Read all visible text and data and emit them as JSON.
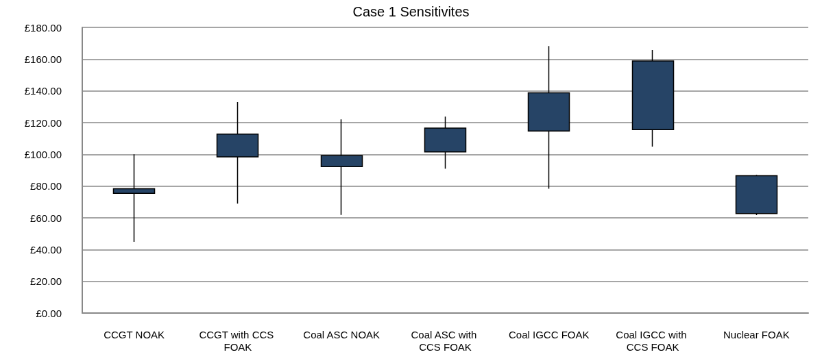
{
  "chart_data": {
    "type": "candlestick",
    "title": "Case 1 Sensitivites",
    "categories": [
      "CCGT NOAK",
      "CCGT with CCS FOAK",
      "Coal ASC NOAK",
      "Coal ASC with CCS FOAK",
      "Coal IGCC FOAK",
      "Coal IGCC with CCS FOAK",
      "Nuclear FOAK"
    ],
    "ohlc": [
      [
        75.4,
        100,
        44.9,
        78.3
      ],
      [
        98.4,
        133,
        69,
        112.8
      ],
      [
        92.3,
        122,
        61.8,
        99.3
      ],
      [
        101.6,
        123.8,
        91,
        116.6
      ],
      [
        114.7,
        168.2,
        78.3,
        138.8
      ],
      [
        115.6,
        165.8,
        104.9,
        158.8
      ],
      [
        62.7,
        87.1,
        61.7,
        86.5
      ]
    ],
    "color": "#264466",
    "ylim": [
      0,
      180
    ],
    "yticks": [
      {
        "value": 0,
        "label": "£0.00"
      },
      {
        "value": 20,
        "label": "£20.00"
      },
      {
        "value": 40,
        "label": "£40.00"
      },
      {
        "value": 60,
        "label": "£60.00"
      },
      {
        "value": 80,
        "label": "£80.00"
      },
      {
        "value": 100,
        "label": "£100.00"
      },
      {
        "value": 120,
        "label": "£120.00"
      },
      {
        "value": 140,
        "label": "£140.00"
      },
      {
        "value": 160,
        "label": "£160.00"
      },
      {
        "value": 180,
        "label": "£180.00"
      }
    ],
    "grid": "y"
  }
}
